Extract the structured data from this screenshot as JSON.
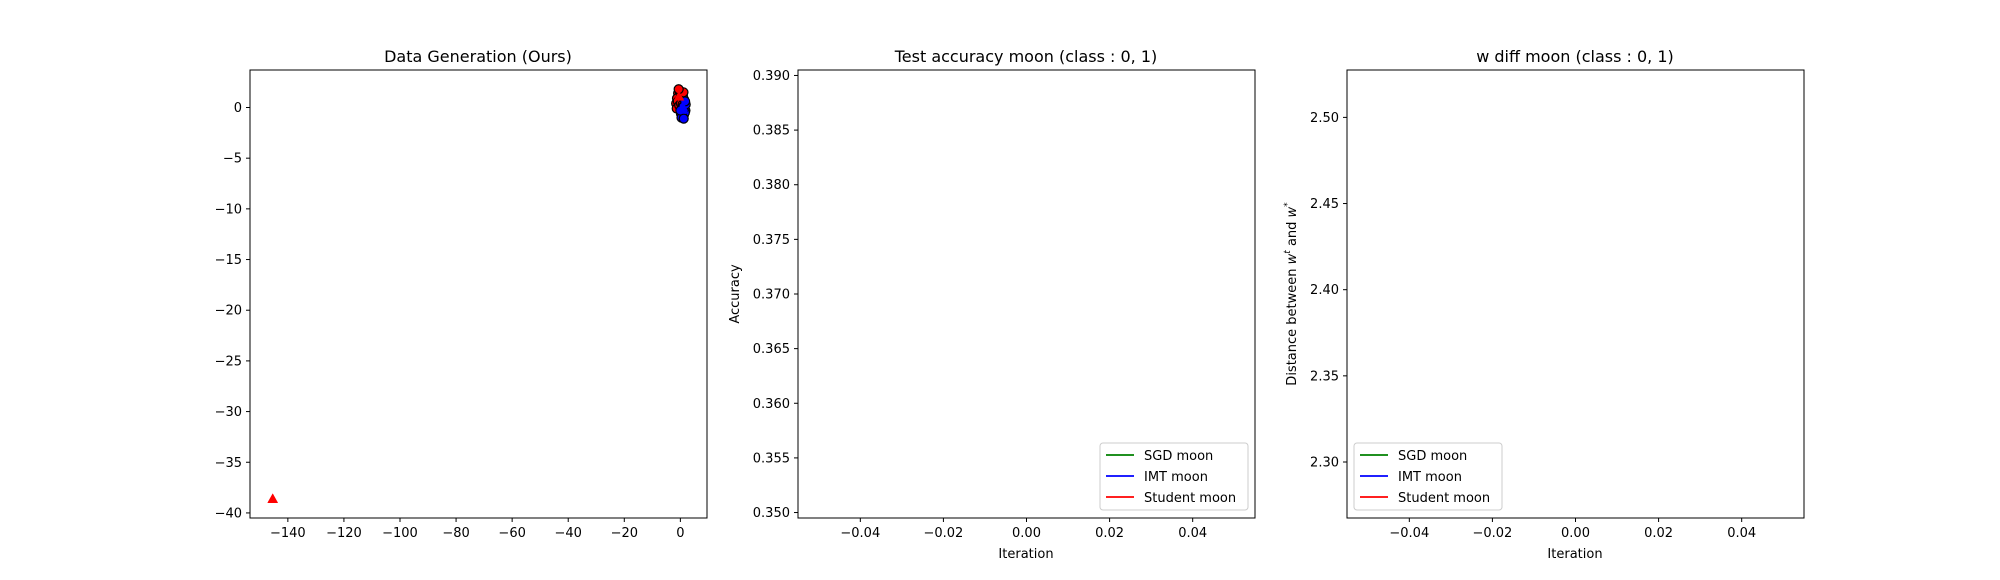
{
  "chart_data": [
    {
      "type": "scatter",
      "title": "Data Generation (Ours)",
      "xlabel": "",
      "ylabel": "",
      "xlim": [
        -153.5,
        9.5
      ],
      "ylim": [
        -40.5,
        3.7
      ],
      "xticks": [
        -140,
        -120,
        -100,
        -80,
        -60,
        -40,
        -20,
        0
      ],
      "xtick_labels": [
        "−140",
        "−120",
        "−100",
        "−80",
        "−60",
        "−40",
        "−20",
        "0"
      ],
      "yticks": [
        0,
        -5,
        -10,
        -15,
        -20,
        -25,
        -30,
        -35,
        -40
      ],
      "ytick_labels": [
        "0",
        "−5",
        "−10",
        "−15",
        "−20",
        "−25",
        "−30",
        "−35",
        "−40"
      ],
      "series": [
        {
          "color": "#ff0000",
          "marker": "circle",
          "edge": "#000000",
          "points": [
            [
              -0.8,
              1.4
            ],
            [
              -0.3,
              1.6
            ],
            [
              0.3,
              1.5
            ],
            [
              0.9,
              1.2
            ],
            [
              1.3,
              0.8
            ],
            [
              -1.2,
              0.9
            ],
            [
              -1.5,
              0.4
            ],
            [
              -1.3,
              -0.1
            ],
            [
              -0.9,
              0.6
            ],
            [
              0.1,
              1.0
            ],
            [
              0.6,
              0.7
            ],
            [
              -0.4,
              0.2
            ],
            [
              0.2,
              0.4
            ],
            [
              1.1,
              1.5
            ],
            [
              -0.6,
              1.8
            ],
            [
              0.8,
              0.3
            ]
          ]
        },
        {
          "color": "#0000ff",
          "marker": "circle",
          "edge": "#000000",
          "points": [
            [
              1.5,
              0.2
            ],
            [
              1.8,
              -0.3
            ],
            [
              1.3,
              -0.7
            ],
            [
              0.8,
              -0.9
            ],
            [
              0.2,
              -0.6
            ],
            [
              0.6,
              -0.2
            ],
            [
              1.0,
              0.1
            ],
            [
              1.6,
              -0.5
            ],
            [
              0.4,
              -1.0
            ],
            [
              1.9,
              0.3
            ],
            [
              0.9,
              -0.4
            ],
            [
              1.2,
              -1.1
            ],
            [
              0.0,
              -0.3
            ],
            [
              1.7,
              0.6
            ]
          ]
        },
        {
          "color": "#ff0000",
          "marker": "triangle",
          "edge": "#ff0000",
          "points": [
            [
              -145.4,
              -38.6
            ],
            [
              -0.5,
              1.1
            ]
          ]
        },
        {
          "color": "#0000ff",
          "marker": "triangle",
          "edge": "#0000ff",
          "points": [
            [
              0.8,
              0.1
            ],
            [
              1.1,
              -0.2
            ]
          ]
        }
      ]
    },
    {
      "type": "line",
      "title": "Test accuracy moon (class : 0, 1)",
      "xlabel": "Iteration",
      "ylabel": "Accuracy",
      "xlim": [
        -0.055,
        0.055
      ],
      "ylim": [
        0.3495,
        0.3905
      ],
      "xticks": [
        -0.04,
        -0.02,
        0.0,
        0.02,
        0.04
      ],
      "xtick_labels": [
        "−0.04",
        "−0.02",
        "0.00",
        "0.02",
        "0.04"
      ],
      "yticks": [
        0.35,
        0.355,
        0.36,
        0.365,
        0.37,
        0.375,
        0.38,
        0.385,
        0.39
      ],
      "ytick_labels": [
        "0.350",
        "0.355",
        "0.360",
        "0.365",
        "0.370",
        "0.375",
        "0.380",
        "0.385",
        "0.390"
      ],
      "legend_position": "lower right",
      "series": [
        {
          "name": "SGD moon",
          "color": "#008000",
          "x": [],
          "y": []
        },
        {
          "name": "IMT moon",
          "color": "#0000ff",
          "x": [],
          "y": []
        },
        {
          "name": "Student moon",
          "color": "#ff0000",
          "x": [],
          "y": []
        }
      ]
    },
    {
      "type": "line",
      "title": "w diff moon (class : 0, 1)",
      "xlabel": "Iteration",
      "ylabel": "Distance between w^t and w^*",
      "xlim": [
        -0.055,
        0.055
      ],
      "ylim": [
        2.2675,
        2.5275
      ],
      "xticks": [
        -0.04,
        -0.02,
        0.0,
        0.02,
        0.04
      ],
      "xtick_labels": [
        "−0.04",
        "−0.02",
        "0.00",
        "0.02",
        "0.04"
      ],
      "yticks": [
        2.3,
        2.35,
        2.4,
        2.45,
        2.5
      ],
      "ytick_labels": [
        "2.30",
        "2.35",
        "2.40",
        "2.45",
        "2.50"
      ],
      "legend_position": "lower left",
      "series": [
        {
          "name": "SGD moon",
          "color": "#008000",
          "x": [],
          "y": []
        },
        {
          "name": "IMT moon",
          "color": "#0000ff",
          "x": [],
          "y": []
        },
        {
          "name": "Student moon",
          "color": "#ff0000",
          "x": [],
          "y": []
        }
      ]
    }
  ],
  "ylabel_parts": {
    "prefix": "Distance between ",
    "w1": "w",
    "sup1": "t",
    "middle": " and ",
    "w2": "w",
    "sup2": "*"
  }
}
